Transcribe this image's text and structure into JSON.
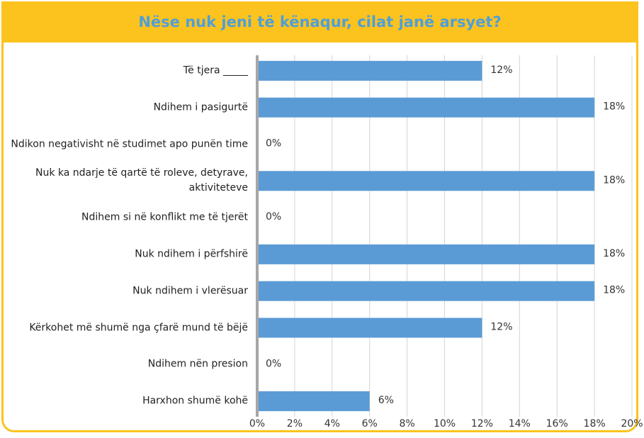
{
  "chart_data": {
    "type": "hbar",
    "title": "Nëse nuk jeni të kënaqur, cilat janë arsyet?",
    "categories": [
      "Të tjera _____",
      "Ndihem i pasigurtë",
      "Ndikon negativisht në studimet apo punën time",
      "Nuk ka ndarje të qartë të roleve, detyrave, aktiviteteve",
      "Ndihem si në konflikt me të tjerët",
      "Nuk ndihem i përfshirë",
      "Nuk ndihem i vlerësuar",
      "Kërkohet më shumë nga çfarë mund të bëjë",
      "Ndihem nën presion",
      "Harxhon shumë kohë"
    ],
    "values": [
      12,
      18,
      0,
      18,
      0,
      18,
      18,
      12,
      0,
      6
    ],
    "value_labels": [
      "12%",
      "18%",
      "0%",
      "18%",
      "0%",
      "18%",
      "18%",
      "12%",
      "0%",
      "6%"
    ],
    "color": "#5b9bd5",
    "xlim": [
      0,
      20
    ],
    "xticks": [
      {
        "value": 0,
        "label": "0%"
      },
      {
        "value": 2,
        "label": "2%"
      },
      {
        "value": 4,
        "label": "4%"
      },
      {
        "value": 6,
        "label": "6%"
      },
      {
        "value": 8,
        "label": "8%"
      },
      {
        "value": 10,
        "label": "10%"
      },
      {
        "value": 12,
        "label": "12%"
      },
      {
        "value": 14,
        "label": "14%"
      },
      {
        "value": 16,
        "label": "16%"
      },
      {
        "value": 18,
        "label": "18%"
      },
      {
        "value": 20,
        "label": "20%"
      }
    ],
    "grid": true
  }
}
